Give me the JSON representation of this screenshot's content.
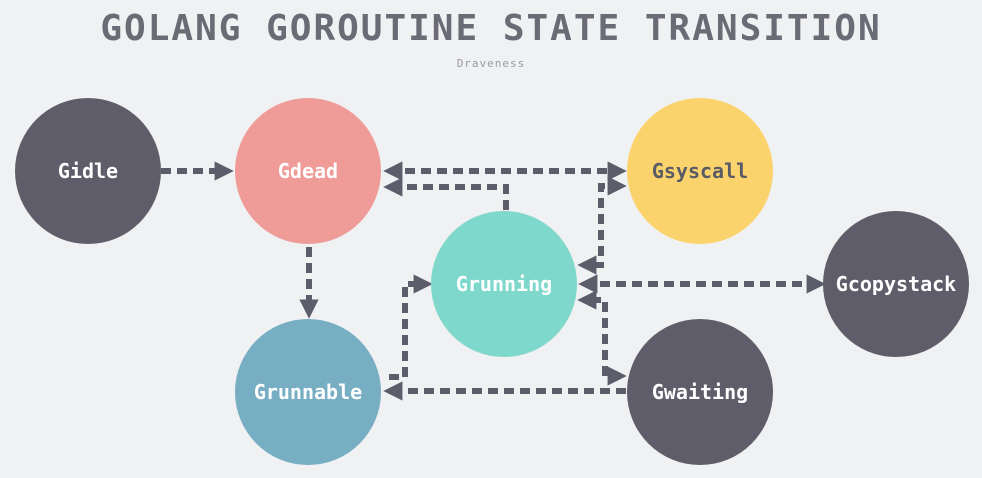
{
  "title": "GOLANG GOROUTINE STATE TRANSITION",
  "author": "Draveness",
  "colors": {
    "background": "#f0f1f3",
    "dark_node": "#5f5d6a",
    "gdead": "#ef9c98",
    "gsyscall": "#fad36d",
    "grunning": "#7ed8cb",
    "grunnable": "#78aec3",
    "edge": "#5d5c6a"
  },
  "nodes": {
    "gidle": {
      "label": "Gidle"
    },
    "gdead": {
      "label": "Gdead"
    },
    "gsyscall": {
      "label": "Gsyscall"
    },
    "grunning": {
      "label": "Grunning"
    },
    "gcopystack": {
      "label": "Gcopystack"
    },
    "grunnable": {
      "label": "Grunnable"
    },
    "gwaiting": {
      "label": "Gwaiting"
    }
  }
}
